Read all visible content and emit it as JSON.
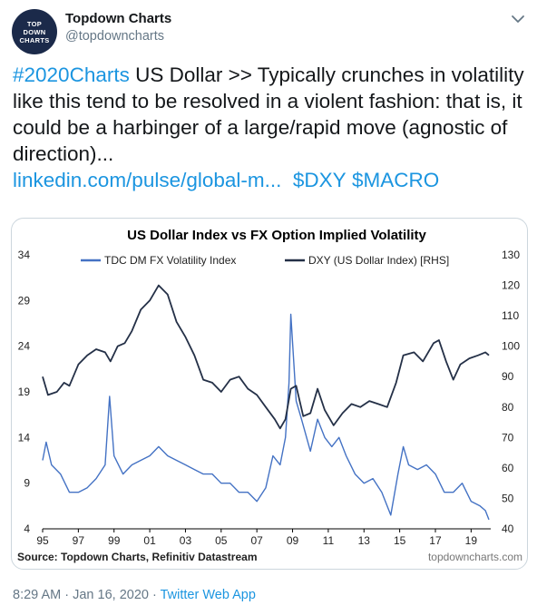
{
  "account": {
    "display_name": "Topdown Charts",
    "handle": "@topdowncharts",
    "avatar_lines": [
      "TOP",
      "DOWN",
      "CHARTS"
    ]
  },
  "tweet": {
    "hashtag": "#2020Charts",
    "text": "  US Dollar >> Typically crunches in volatility like this tend to be resolved in a violent fashion: that is, it could be a harbinger of a large/rapid move (agnostic of direction)...",
    "link": "linkedin.com/pulse/global-m...",
    "cashtags": [
      "$DXY",
      "$MACRO"
    ]
  },
  "footer": {
    "time": "8:29 AM",
    "date": "Jan 16, 2020",
    "separator": "·",
    "app": "Twitter Web App"
  },
  "icons": {
    "menu": "chevron-down-icon"
  },
  "colors": {
    "link": "#1b95e0",
    "vol_line": "#4472c4",
    "dxy_line": "#243047"
  },
  "chart_data": {
    "type": "line",
    "title": "US Dollar Index vs FX Option Implied Volatility",
    "source": "Source: Topdown Charts, Refinitiv Datastream",
    "watermark": "topdowncharts.com",
    "x_ticks": [
      "95",
      "97",
      "99",
      "01",
      "03",
      "05",
      "07",
      "09",
      "11",
      "13",
      "15",
      "17",
      "19"
    ],
    "x_range": [
      1995,
      2020.1
    ],
    "y_left": {
      "ticks": [
        "34",
        "29",
        "24",
        "19",
        "14",
        "9",
        "4"
      ],
      "range": [
        4,
        34
      ]
    },
    "y_right": {
      "ticks": [
        "130",
        "120",
        "110",
        "100",
        "90",
        "80",
        "70",
        "60",
        "50",
        "40"
      ],
      "range": [
        40,
        130
      ]
    },
    "legend_placement": "top",
    "series": [
      {
        "name": "TDC DM FX Volatility Index",
        "axis": "left",
        "points": [
          [
            1995.0,
            11.5
          ],
          [
            1995.2,
            13.5
          ],
          [
            1995.5,
            11
          ],
          [
            1996.0,
            10
          ],
          [
            1996.5,
            8
          ],
          [
            1997.0,
            8
          ],
          [
            1997.5,
            8.5
          ],
          [
            1998.0,
            9.5
          ],
          [
            1998.5,
            11
          ],
          [
            1998.75,
            18.5
          ],
          [
            1999.0,
            12
          ],
          [
            1999.5,
            10
          ],
          [
            2000.0,
            11
          ],
          [
            2000.5,
            11.5
          ],
          [
            2001.0,
            12
          ],
          [
            2001.5,
            13
          ],
          [
            2002.0,
            12
          ],
          [
            2002.5,
            11.5
          ],
          [
            2003.0,
            11
          ],
          [
            2003.5,
            10.5
          ],
          [
            2004.0,
            10
          ],
          [
            2004.5,
            10
          ],
          [
            2005.0,
            9
          ],
          [
            2005.5,
            9
          ],
          [
            2006.0,
            8
          ],
          [
            2006.5,
            8
          ],
          [
            2007.0,
            7
          ],
          [
            2007.5,
            8.5
          ],
          [
            2007.9,
            12
          ],
          [
            2008.3,
            11
          ],
          [
            2008.6,
            14
          ],
          [
            2008.8,
            20
          ],
          [
            2008.9,
            27.5
          ],
          [
            2009.2,
            18
          ],
          [
            2009.5,
            16
          ],
          [
            2010.0,
            12.5
          ],
          [
            2010.4,
            16
          ],
          [
            2010.8,
            14
          ],
          [
            2011.2,
            13
          ],
          [
            2011.6,
            14
          ],
          [
            2012.0,
            12
          ],
          [
            2012.5,
            10
          ],
          [
            2013.0,
            9
          ],
          [
            2013.5,
            9.5
          ],
          [
            2014.0,
            8
          ],
          [
            2014.5,
            5.5
          ],
          [
            2014.9,
            10
          ],
          [
            2015.2,
            13
          ],
          [
            2015.5,
            11
          ],
          [
            2016.0,
            10.5
          ],
          [
            2016.5,
            11
          ],
          [
            2017.0,
            10
          ],
          [
            2017.5,
            8
          ],
          [
            2018.0,
            8
          ],
          [
            2018.5,
            9
          ],
          [
            2019.0,
            7
          ],
          [
            2019.5,
            6.5
          ],
          [
            2019.8,
            6
          ],
          [
            2020.0,
            5
          ]
        ]
      },
      {
        "name": "DXY (US Dollar Index) [RHS]",
        "axis": "right",
        "points": [
          [
            1995.0,
            90
          ],
          [
            1995.3,
            84
          ],
          [
            1995.8,
            85
          ],
          [
            1996.2,
            88
          ],
          [
            1996.5,
            87
          ],
          [
            1997.0,
            94
          ],
          [
            1997.5,
            97
          ],
          [
            1998.0,
            99
          ],
          [
            1998.5,
            98
          ],
          [
            1998.8,
            95
          ],
          [
            1999.2,
            100
          ],
          [
            1999.6,
            101
          ],
          [
            2000.0,
            105
          ],
          [
            2000.5,
            112
          ],
          [
            2001.0,
            115
          ],
          [
            2001.5,
            120
          ],
          [
            2002.0,
            117
          ],
          [
            2002.5,
            108
          ],
          [
            2003.0,
            103
          ],
          [
            2003.5,
            97
          ],
          [
            2004.0,
            89
          ],
          [
            2004.5,
            88
          ],
          [
            2005.0,
            85
          ],
          [
            2005.5,
            89
          ],
          [
            2006.0,
            90
          ],
          [
            2006.5,
            86
          ],
          [
            2007.0,
            84
          ],
          [
            2007.5,
            80
          ],
          [
            2008.0,
            76
          ],
          [
            2008.3,
            73
          ],
          [
            2008.6,
            76
          ],
          [
            2008.9,
            86
          ],
          [
            2009.2,
            87
          ],
          [
            2009.6,
            77
          ],
          [
            2010.0,
            78
          ],
          [
            2010.4,
            86
          ],
          [
            2010.8,
            79
          ],
          [
            2011.3,
            74
          ],
          [
            2011.8,
            78
          ],
          [
            2012.3,
            81
          ],
          [
            2012.8,
            80
          ],
          [
            2013.3,
            82
          ],
          [
            2013.8,
            81
          ],
          [
            2014.3,
            80
          ],
          [
            2014.8,
            88
          ],
          [
            2015.2,
            97
          ],
          [
            2015.8,
            98
          ],
          [
            2016.3,
            95
          ],
          [
            2016.9,
            101
          ],
          [
            2017.2,
            102
          ],
          [
            2017.6,
            95
          ],
          [
            2018.0,
            89
          ],
          [
            2018.4,
            94
          ],
          [
            2018.9,
            96
          ],
          [
            2019.4,
            97
          ],
          [
            2019.8,
            98
          ],
          [
            2020.0,
            97
          ]
        ]
      }
    ]
  }
}
